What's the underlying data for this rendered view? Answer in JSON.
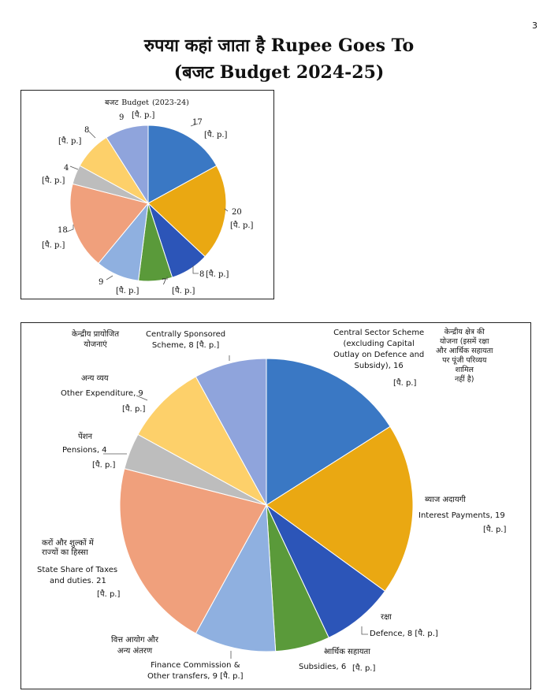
{
  "page_number": "3",
  "title_line1": "रुपया कहां जाता है Rupee Goes To",
  "title_line2": "(बजट Budget 2024-25)",
  "unit_label": "[पै. p.]",
  "small_chart_title_hi": "बजट",
  "small_chart_title_en": "Budget",
  "small_chart_year": "(2023-24)",
  "chart_data": [
    {
      "type": "pie",
      "title": "बजट Budget (2023-24)",
      "values": [
        17,
        20,
        8,
        7,
        9,
        18,
        4,
        8,
        9
      ],
      "value_labels": [
        "17",
        "20",
        "8",
        "7",
        "9",
        "18",
        "4",
        "8",
        "9"
      ],
      "unit": "[पै. p.]",
      "colors": [
        "#3a78c4",
        "#eaa812",
        "#2c55b8",
        "#5a9a3a",
        "#8fb0e0",
        "#f0a07c",
        "#bdbdbd",
        "#fdd06a",
        "#8fa4dc"
      ]
    },
    {
      "type": "pie",
      "title": "(बजट Budget 2024-25)",
      "categories": [
        "Central Sector Scheme (excluding Capital Outlay on Defence and Subsidy)",
        "Interest Payments",
        "Defence",
        "Subsidies",
        "Finance Commission & Other transfers",
        "State Share of Taxes and duties.",
        "Pensions",
        "Other Expenditure",
        "Centrally Sponsored Scheme"
      ],
      "values": [
        16,
        19,
        8,
        6,
        9,
        21,
        4,
        9,
        8
      ],
      "unit": "[पै. p.]",
      "colors": [
        "#3a78c4",
        "#eaa812",
        "#2c55b8",
        "#5a9a3a",
        "#8fb0e0",
        "#f0a07c",
        "#bdbdbd",
        "#fdd06a",
        "#8fa4dc"
      ],
      "labels": {
        "css_hi_1": "केन्द्रीय क्षेत्र की",
        "css_hi_2": "योजना (इसमें रक्षा",
        "css_hi_3": "और आर्थिक सहायता",
        "css_hi_4": "पर पूंजी परिव्यय",
        "css_hi_5": "शामिल",
        "css_hi_6": "नहीं है)",
        "css_en_1": "Central Sector Scheme",
        "css_en_2": "(excluding Capital",
        "css_en_3": "Outlay on Defence and",
        "css_en_4": "Subsidy), 16",
        "int_hi": "ब्याज अदायगी",
        "int_en": "Interest Payments, 19",
        "def_hi": "रक्षा",
        "def_en": "Defence, 8 [पै. p.]",
        "sub_hi": "आर्थिक सहायता",
        "sub_en": "Subsidies, 6",
        "fin_hi_1": "वित्त आयोग और",
        "fin_hi_2": "अन्य अंतरण",
        "fin_en_1": "Finance Commission &",
        "fin_en_2": "Other transfers, 9",
        "tax_hi_1": "करों और शुल्कों में",
        "tax_hi_2": "राज्यों का हिस्सा",
        "tax_en_1": "State Share of Taxes",
        "tax_en_2": "and duties. 21",
        "pen_hi": "पेंशन",
        "pen_en": "Pensions, 4",
        "oth_hi": "अन्य व्यय",
        "oth_en": "Other Expenditure, 9",
        "cssp_hi_1": "केन्द्रीय प्रायोजित",
        "cssp_hi_2": "योजनाएं",
        "cssp_en_1": "Centrally Sponsored",
        "cssp_en_2": "Scheme, 8"
      }
    }
  ]
}
